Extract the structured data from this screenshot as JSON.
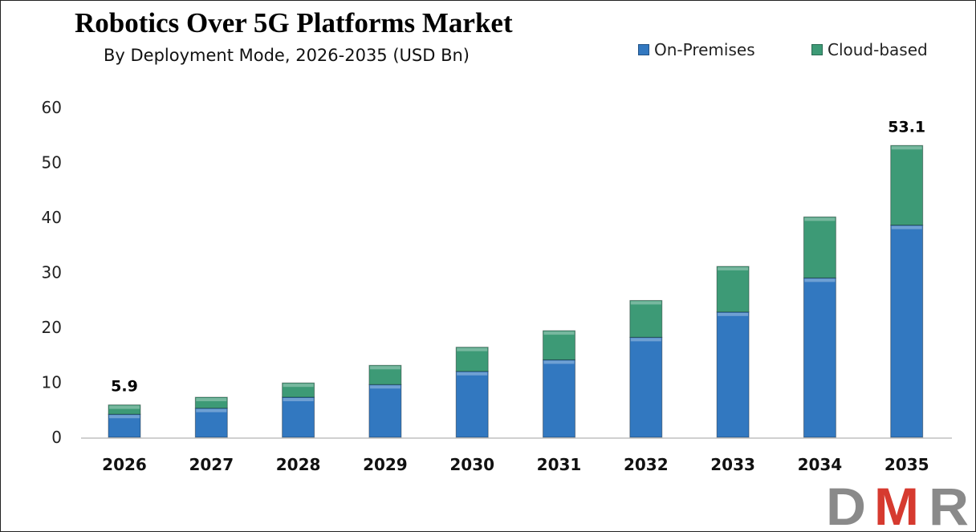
{
  "chart_data": {
    "type": "bar",
    "stacked": true,
    "title": "Robotics Over 5G Platforms Market",
    "subtitle": "By Deployment Mode, 2026-2035 (USD Bn)",
    "categories": [
      "2026",
      "2027",
      "2028",
      "2029",
      "2030",
      "2031",
      "2032",
      "2033",
      "2034",
      "2035"
    ],
    "series": [
      {
        "name": "On-Premises",
        "color": "#3278c0",
        "values": [
          4.2,
          5.3,
          7.3,
          9.6,
          12.0,
          14.1,
          18.2,
          22.8,
          29.0,
          38.6
        ]
      },
      {
        "name": "Cloud-based",
        "color": "#3d9a76",
        "values": [
          1.7,
          2.0,
          2.6,
          3.5,
          4.4,
          5.3,
          6.7,
          8.3,
          11.1,
          14.5
        ]
      }
    ],
    "data_labels": {
      "2026": "5.9",
      "2035": "53.1"
    },
    "ylim": [
      0,
      60
    ],
    "yticks": [
      "0",
      "10",
      "20",
      "30",
      "40",
      "50",
      "60"
    ],
    "grid": false,
    "legend_position": "top-right",
    "xlabel": "",
    "ylabel": ""
  },
  "logo": "DMR"
}
